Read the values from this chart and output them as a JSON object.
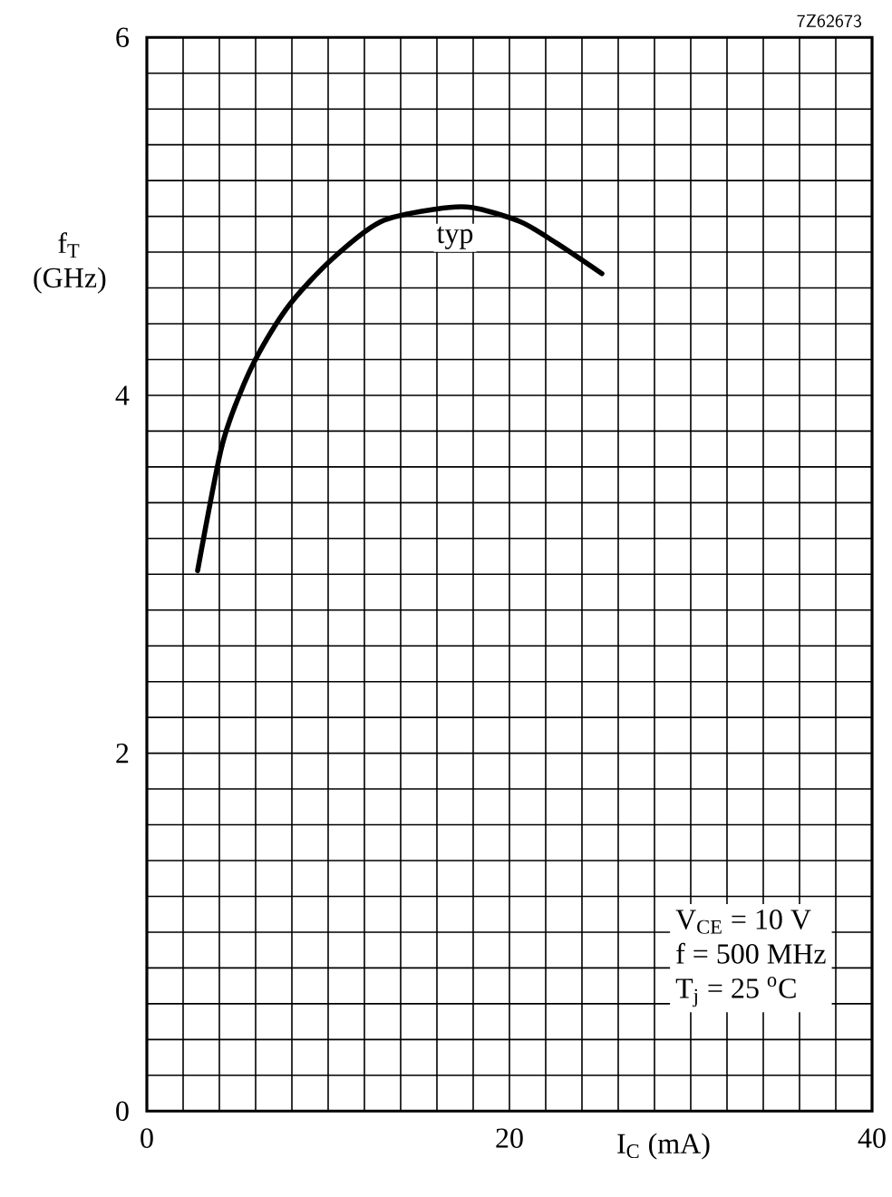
{
  "chart_data": {
    "type": "line",
    "xlabel": "I$_{C}$ (mA)",
    "ylabel": "f$_{T}$ (GHz)",
    "series": [
      {
        "color": "#000000",
        "x": [
          2.8,
          4.1,
          5.1,
          6.2,
          7.9,
          10.2,
          12.9,
          15.9,
          17.9,
          20.6,
          22.6,
          25.1
        ],
        "values": [
          3.02,
          3.7,
          4.0,
          4.24,
          4.51,
          4.76,
          4.97,
          5.04,
          5.05,
          4.97,
          4.85,
          4.68
        ]
      }
    ],
    "xlim": [
      0,
      40
    ],
    "ylim": [
      0,
      6
    ],
    "xticks": [
      0,
      20,
      40
    ],
    "yticks": [
      0,
      2,
      4,
      6
    ],
    "grid": true,
    "marker": "none",
    "line_style": "solid",
    "annotations": [
      "7Z62673",
      {
        "text": "typ",
        "x": 17,
        "y": 4.88
      },
      "V$_{CE}$ = 10 V",
      "f = 500 MHz",
      "T$_{j}$ = 25 $^{o}$C"
    ]
  }
}
